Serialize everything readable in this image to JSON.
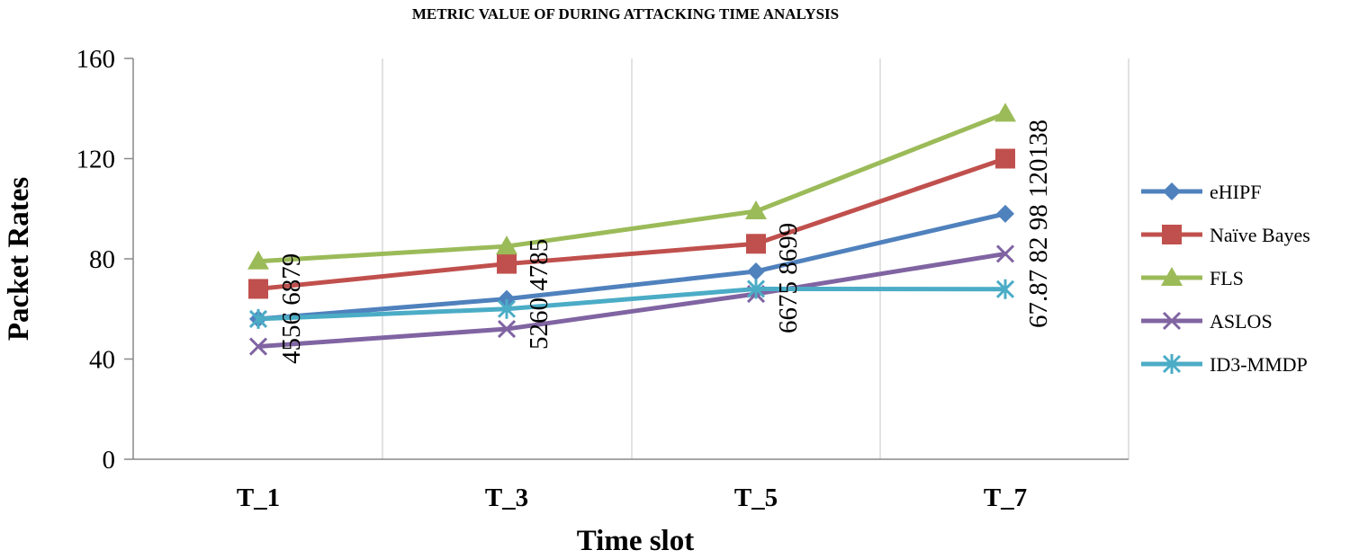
{
  "chart_data": {
    "type": "line",
    "title": "METRIC VALUE OF DURING ATTACKING TIME ANALYSIS",
    "xlabel": "Time slot",
    "ylabel": "Packet Rates",
    "categories": [
      "T_1",
      "T_3",
      "T_5",
      "T_7"
    ],
    "ylim": [
      0,
      160
    ],
    "yticks": [
      0,
      40,
      80,
      120,
      160
    ],
    "grid": "vertical",
    "legend": "right",
    "series": [
      {
        "name": "eHIPF",
        "values": [
          56,
          64,
          75,
          98
        ],
        "color": "#4f81bd",
        "marker": "diamond"
      },
      {
        "name": "Naïve Bayes",
        "values": [
          68,
          78,
          86,
          120
        ],
        "color": "#c0504d",
        "marker": "square"
      },
      {
        "name": "FLS",
        "values": [
          79,
          85,
          99,
          138
        ],
        "color": "#9bbb59",
        "marker": "triangle"
      },
      {
        "name": "ASLOS",
        "values": [
          45,
          52,
          66,
          82
        ],
        "color": "#8064a2",
        "marker": "x"
      },
      {
        "name": "ID3-MMDP",
        "values": [
          56,
          60,
          68,
          67.87
        ],
        "color": "#4bacc6",
        "marker": "asterisk"
      }
    ],
    "data_label_texts": [
      "4556 6879",
      "5260 4785",
      "6675 8699",
      "67.87 82 98 120138"
    ]
  }
}
